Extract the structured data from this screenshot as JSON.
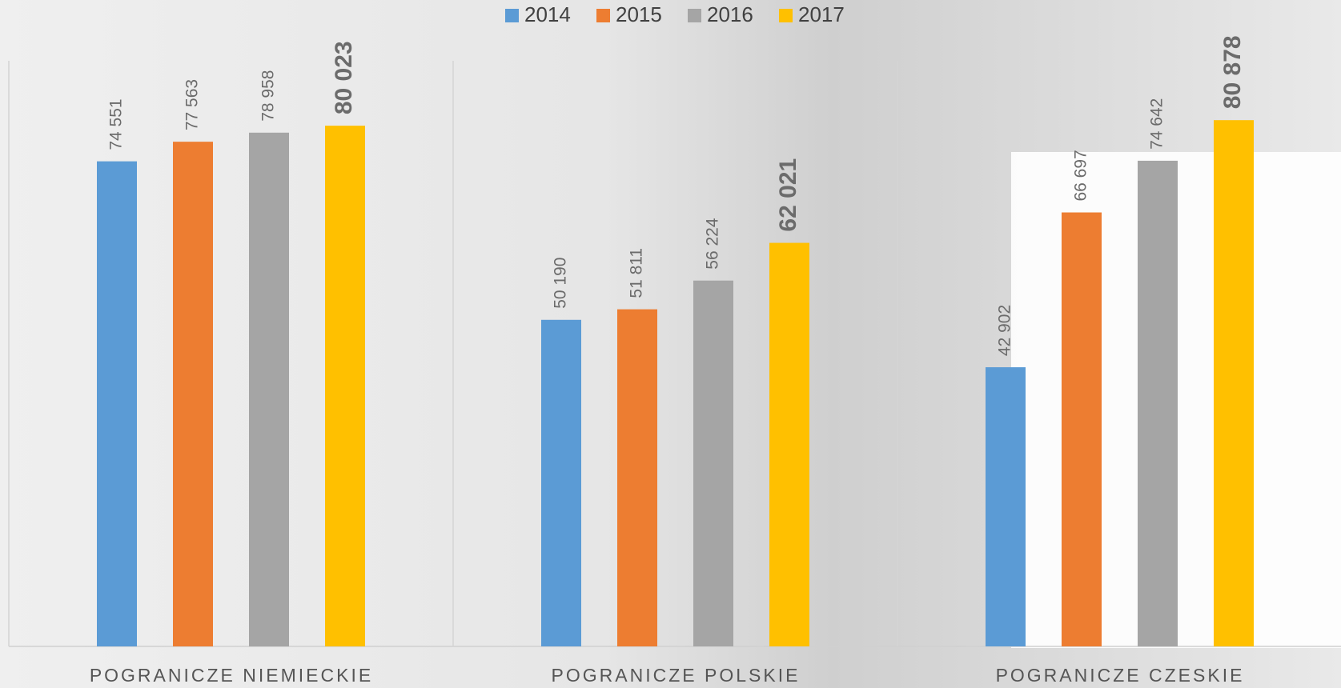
{
  "chart_data": {
    "type": "bar",
    "categories": [
      "POGRANICZE NIEMIECKIE",
      "POGRANICZE POLSKIE",
      "POGRANICZE CZESKIE"
    ],
    "series": [
      {
        "name": "2014",
        "color": "#5b9bd5",
        "values": [
          74551,
          50190,
          42902
        ],
        "value_labels": [
          "74 551",
          "50 190",
          "42 902"
        ]
      },
      {
        "name": "2015",
        "color": "#ed7d31",
        "values": [
          77563,
          51811,
          66697
        ],
        "value_labels": [
          "77 563",
          "51 811",
          "66 697"
        ]
      },
      {
        "name": "2016",
        "color": "#a5a5a5",
        "values": [
          78958,
          56224,
          74642
        ],
        "value_labels": [
          "78 958",
          "56 224",
          "74 642"
        ]
      },
      {
        "name": "2017",
        "color": "#ffc000",
        "values": [
          80023,
          62021,
          80878
        ],
        "value_labels": [
          "80 023",
          "62 021",
          "80 878"
        ]
      }
    ],
    "ylim": [
      0,
      90000
    ],
    "legend": "top"
  }
}
